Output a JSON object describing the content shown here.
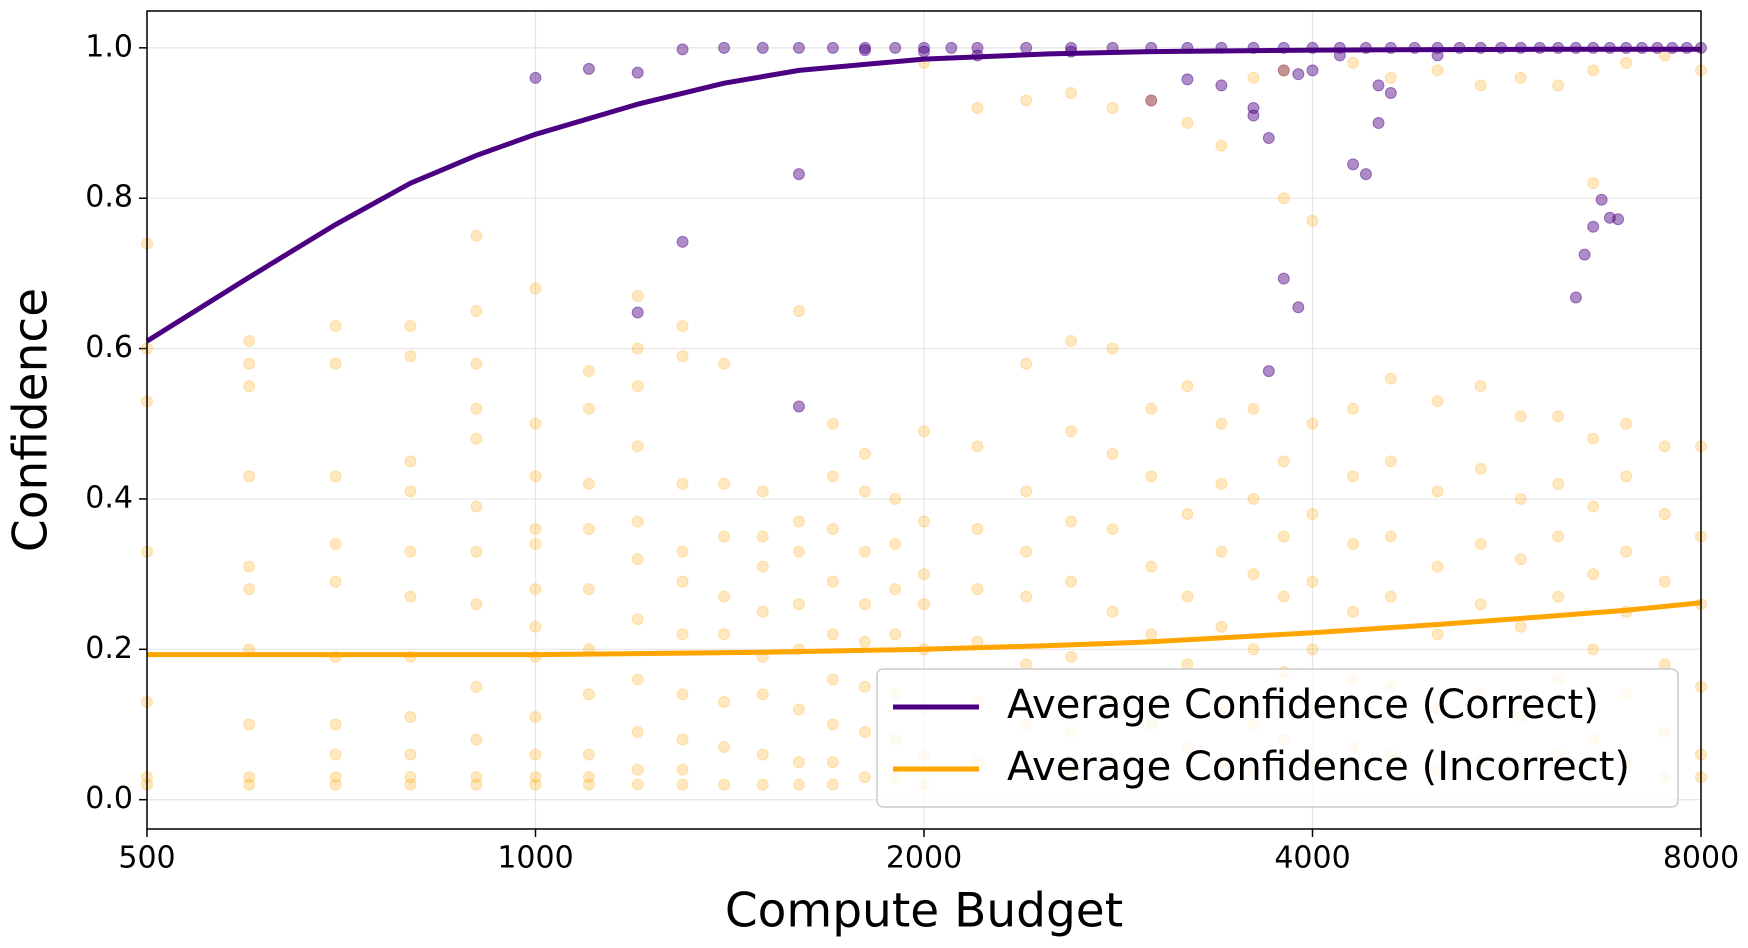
{
  "chart_data": {
    "type": "scatter",
    "xlabel": "Compute Budget",
    "ylabel": "Confidence",
    "xscale": "log",
    "xlim": [
      500,
      8000
    ],
    "xticks": [
      500,
      1000,
      2000,
      4000,
      8000
    ],
    "ylim": [
      -0.039,
      1.049
    ],
    "yticks": [
      {
        "value": 0,
        "label": "0.0"
      },
      0.2,
      0.4,
      0.6,
      0.8,
      {
        "value": 1,
        "label": "1.0"
      }
    ],
    "grid": true,
    "legend": "lower right",
    "series": [
      {
        "name": "Average Confidence (Correct)",
        "color": "#4b0082",
        "x": [
          500,
          600,
          700,
          800,
          900,
          1000,
          1200,
          1400,
          1600,
          2000,
          2500,
          3000,
          4000,
          6000,
          8000
        ],
        "values": [
          0.61,
          0.695,
          0.765,
          0.82,
          0.857,
          0.885,
          0.925,
          0.953,
          0.97,
          0.985,
          0.992,
          0.995,
          0.997,
          0.998,
          0.998
        ]
      },
      {
        "name": "Average Confidence (Incorrect)",
        "color": "#ffa500",
        "x": [
          500,
          1000,
          1500,
          2000,
          2500,
          3000,
          4000,
          5000,
          6000,
          7000,
          8000
        ],
        "values": [
          0.193,
          0.193,
          0.196,
          0.2,
          0.205,
          0.21,
          0.222,
          0.233,
          0.243,
          0.252,
          0.262
        ]
      }
    ],
    "points": [
      {
        "color": "#4b0082",
        "groups": [
          {
            "x": 1000,
            "values": [
              0.96
            ]
          },
          {
            "x": 1100,
            "values": [
              0.972
            ]
          },
          {
            "x": 1200,
            "values": [
              0.967,
              0.648
            ]
          },
          {
            "x": 1300,
            "values": [
              0.998,
              0.742
            ]
          },
          {
            "x": 1400,
            "values": [
              1.0
            ]
          },
          {
            "x": 1500,
            "values": [
              1.0
            ]
          },
          {
            "x": 1600,
            "values": [
              1.0,
              0.832,
              0.523
            ]
          },
          {
            "x": 1700,
            "values": [
              1.0
            ]
          },
          {
            "x": 1800,
            "values": [
              1.0,
              0.997
            ]
          },
          {
            "x": 1900,
            "values": [
              1.0
            ]
          },
          {
            "x": 2000,
            "values": [
              1.0,
              0.995
            ]
          },
          {
            "x": 2100,
            "values": [
              1.0
            ]
          },
          {
            "x": 2200,
            "values": [
              1.0,
              0.99
            ]
          },
          {
            "x": 2400,
            "values": [
              1.0
            ]
          },
          {
            "x": 2600,
            "values": [
              1.0,
              0.995
            ]
          },
          {
            "x": 2800,
            "values": [
              1.0
            ]
          },
          {
            "x": 3000,
            "values": [
              1.0,
              0.93
            ]
          },
          {
            "x": 3200,
            "values": [
              1.0,
              0.958
            ]
          },
          {
            "x": 3400,
            "values": [
              1.0,
              0.95
            ]
          },
          {
            "x": 3600,
            "values": [
              1.0,
              0.92,
              0.91
            ]
          },
          {
            "x": 3700,
            "values": [
              0.88,
              0.57
            ]
          },
          {
            "x": 3800,
            "values": [
              1.0,
              0.97,
              0.693
            ]
          },
          {
            "x": 3900,
            "values": [
              0.655,
              0.965
            ]
          },
          {
            "x": 4000,
            "values": [
              1.0,
              0.97
            ]
          },
          {
            "x": 4200,
            "values": [
              1.0,
              0.99
            ]
          },
          {
            "x": 4300,
            "values": [
              0.845
            ]
          },
          {
            "x": 4400,
            "values": [
              1.0,
              0.832
            ]
          },
          {
            "x": 4500,
            "values": [
              0.9,
              0.95
            ]
          },
          {
            "x": 4600,
            "values": [
              1.0,
              0.94
            ]
          },
          {
            "x": 4800,
            "values": [
              1.0
            ]
          },
          {
            "x": 5000,
            "values": [
              1.0,
              0.99
            ]
          },
          {
            "x": 5200,
            "values": [
              1.0
            ]
          },
          {
            "x": 5400,
            "values": [
              1.0
            ]
          },
          {
            "x": 5600,
            "values": [
              1.0
            ]
          },
          {
            "x": 5800,
            "values": [
              1.0
            ]
          },
          {
            "x": 6000,
            "values": [
              1.0
            ]
          },
          {
            "x": 6200,
            "values": [
              1.0
            ]
          },
          {
            "x": 6400,
            "values": [
              1.0,
              0.668
            ]
          },
          {
            "x": 6500,
            "values": [
              0.725
            ]
          },
          {
            "x": 6600,
            "values": [
              1.0,
              0.762
            ]
          },
          {
            "x": 6700,
            "values": [
              0.798
            ]
          },
          {
            "x": 6800,
            "values": [
              1.0,
              0.774
            ]
          },
          {
            "x": 6900,
            "values": [
              0.772
            ]
          },
          {
            "x": 7000,
            "values": [
              1.0
            ]
          },
          {
            "x": 7200,
            "values": [
              1.0
            ]
          },
          {
            "x": 7400,
            "values": [
              1.0
            ]
          },
          {
            "x": 7600,
            "values": [
              1.0
            ]
          },
          {
            "x": 7800,
            "values": [
              1.0
            ]
          },
          {
            "x": 8000,
            "values": [
              1.0
            ]
          }
        ]
      },
      {
        "color": "#ffa500",
        "groups": [
          {
            "x": 500,
            "values": [
              0.74,
              0.6,
              0.53,
              0.33,
              0.03,
              0.02,
              0.13
            ]
          },
          {
            "x": 600,
            "values": [
              0.61,
              0.58,
              0.55,
              0.43,
              0.31,
              0.28,
              0.2,
              0.1,
              0.03,
              0.02
            ]
          },
          {
            "x": 700,
            "values": [
              0.63,
              0.58,
              0.43,
              0.34,
              0.29,
              0.19,
              0.1,
              0.06,
              0.03,
              0.02
            ]
          },
          {
            "x": 800,
            "values": [
              0.63,
              0.59,
              0.45,
              0.41,
              0.33,
              0.27,
              0.19,
              0.11,
              0.06,
              0.03,
              0.02
            ]
          },
          {
            "x": 900,
            "values": [
              0.75,
              0.65,
              0.58,
              0.52,
              0.48,
              0.39,
              0.33,
              0.26,
              0.15,
              0.08,
              0.03,
              0.02
            ]
          },
          {
            "x": 1000,
            "values": [
              0.68,
              0.5,
              0.43,
              0.36,
              0.34,
              0.28,
              0.23,
              0.19,
              0.11,
              0.06,
              0.03,
              0.02
            ]
          },
          {
            "x": 1100,
            "values": [
              0.57,
              0.52,
              0.42,
              0.36,
              0.28,
              0.2,
              0.14,
              0.06,
              0.03,
              0.02
            ]
          },
          {
            "x": 1200,
            "values": [
              0.67,
              0.6,
              0.55,
              0.47,
              0.37,
              0.32,
              0.24,
              0.16,
              0.09,
              0.04,
              0.02
            ]
          },
          {
            "x": 1300,
            "values": [
              0.63,
              0.59,
              0.42,
              0.33,
              0.29,
              0.22,
              0.14,
              0.08,
              0.04,
              0.02
            ]
          },
          {
            "x": 1400,
            "values": [
              0.58,
              0.42,
              0.35,
              0.27,
              0.22,
              0.13,
              0.07,
              0.02
            ]
          },
          {
            "x": 1500,
            "values": [
              0.41,
              0.35,
              0.31,
              0.25,
              0.19,
              0.14,
              0.06,
              0.02
            ]
          },
          {
            "x": 1600,
            "values": [
              0.65,
              0.37,
              0.33,
              0.26,
              0.2,
              0.12,
              0.05,
              0.02
            ]
          },
          {
            "x": 1700,
            "values": [
              0.5,
              0.43,
              0.36,
              0.29,
              0.22,
              0.16,
              0.1,
              0.05,
              0.02
            ]
          },
          {
            "x": 1800,
            "values": [
              0.46,
              0.41,
              0.33,
              0.26,
              0.21,
              0.15,
              0.09,
              0.03
            ]
          },
          {
            "x": 1900,
            "values": [
              0.4,
              0.34,
              0.28,
              0.22,
              0.14,
              0.08,
              0.03
            ]
          },
          {
            "x": 2000,
            "values": [
              0.98,
              0.49,
              0.37,
              0.3,
              0.26,
              0.2,
              0.12,
              0.06,
              0.02
            ]
          },
          {
            "x": 2200,
            "values": [
              0.92,
              0.47,
              0.36,
              0.28,
              0.21,
              0.13,
              0.05
            ]
          },
          {
            "x": 2400,
            "values": [
              0.93,
              0.58,
              0.41,
              0.33,
              0.27,
              0.18,
              0.1,
              0.04
            ]
          },
          {
            "x": 2600,
            "values": [
              0.94,
              0.61,
              0.49,
              0.37,
              0.29,
              0.19,
              0.09,
              0.04
            ]
          },
          {
            "x": 2800,
            "values": [
              0.92,
              0.6,
              0.46,
              0.36,
              0.25,
              0.13,
              0.05
            ]
          },
          {
            "x": 3000,
            "values": [
              0.93,
              0.52,
              0.43,
              0.31,
              0.22,
              0.1,
              0.04
            ]
          },
          {
            "x": 3200,
            "values": [
              0.9,
              0.55,
              0.38,
              0.27,
              0.18,
              0.07
            ]
          },
          {
            "x": 3400,
            "values": [
              0.87,
              0.5,
              0.42,
              0.33,
              0.23,
              0.12,
              0.05
            ]
          },
          {
            "x": 3600,
            "values": [
              0.96,
              0.52,
              0.4,
              0.3,
              0.2,
              0.1,
              0.04
            ]
          },
          {
            "x": 3800,
            "values": [
              0.97,
              0.8,
              0.45,
              0.35,
              0.27,
              0.17,
              0.08
            ]
          },
          {
            "x": 4000,
            "values": [
              0.77,
              0.5,
              0.38,
              0.29,
              0.2,
              0.12,
              0.05
            ]
          },
          {
            "x": 4300,
            "values": [
              0.98,
              0.52,
              0.43,
              0.34,
              0.25,
              0.16,
              0.07
            ]
          },
          {
            "x": 4600,
            "values": [
              0.96,
              0.56,
              0.45,
              0.35,
              0.27,
              0.15,
              0.06
            ]
          },
          {
            "x": 5000,
            "values": [
              0.97,
              0.53,
              0.41,
              0.31,
              0.22,
              0.12,
              0.04
            ]
          },
          {
            "x": 5400,
            "values": [
              0.95,
              0.55,
              0.44,
              0.34,
              0.26,
              0.14,
              0.05
            ]
          },
          {
            "x": 5800,
            "values": [
              0.96,
              0.51,
              0.4,
              0.32,
              0.23,
              0.11,
              0.04
            ]
          },
          {
            "x": 6200,
            "values": [
              0.95,
              0.51,
              0.42,
              0.35,
              0.27,
              0.16,
              0.06
            ]
          },
          {
            "x": 6600,
            "values": [
              0.97,
              0.82,
              0.48,
              0.39,
              0.3,
              0.2,
              0.08
            ]
          },
          {
            "x": 7000,
            "values": [
              0.98,
              0.5,
              0.43,
              0.33,
              0.25,
              0.14,
              0.05
            ]
          },
          {
            "x": 7500,
            "values": [
              0.99,
              0.47,
              0.38,
              0.29,
              0.18,
              0.09,
              0.03
            ]
          },
          {
            "x": 8000,
            "values": [
              0.97,
              0.47,
              0.35,
              0.26,
              0.15,
              0.06,
              0.03
            ]
          }
        ]
      }
    ]
  }
}
